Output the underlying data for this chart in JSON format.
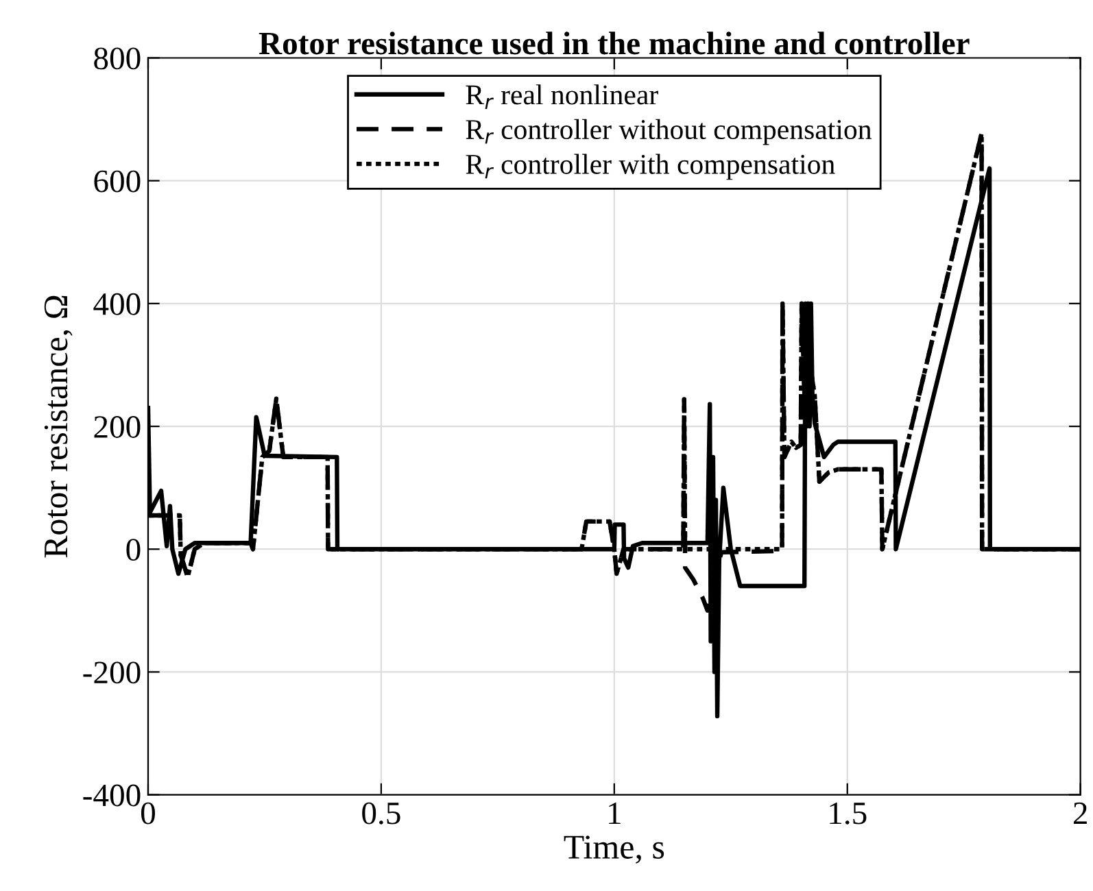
{
  "chart_data": {
    "type": "line",
    "title": "Rotor resistance used in the machine and controller",
    "xlabel": "Time, s",
    "ylabel": "Rotor resistance, Ω",
    "xlim": [
      0,
      2
    ],
    "xticks": [
      0,
      0.5,
      1,
      1.5,
      2
    ],
    "ylim": [
      -400,
      800
    ],
    "yticks": [
      -400,
      -200,
      0,
      200,
      400,
      600,
      800
    ],
    "grid": true,
    "legend": "top",
    "marker": "none",
    "series": [
      {
        "name": "R$_{r}$ real nonlinear",
        "color": "#000000",
        "line_style": "solid",
        "x": [
          0,
          0.004,
          0.028,
          0.04,
          0.047,
          0.052,
          0.065,
          0.08,
          0.1,
          0.22,
          0.232,
          0.25,
          0.405,
          0.406,
          1.0,
          1.001,
          1.02,
          1.021,
          1.03,
          1.04,
          1.06,
          1.2,
          1.205,
          1.207,
          1.212,
          1.215,
          1.218,
          1.221,
          1.225,
          1.234,
          1.25,
          1.27,
          1.408,
          1.41,
          1.413,
          1.416,
          1.419,
          1.422,
          1.425,
          1.43,
          1.45,
          1.47,
          1.48,
          1.603,
          1.604,
          1.805,
          1.806,
          2.0
        ],
        "values": [
          230,
          60,
          95,
          5,
          70,
          0,
          -40,
          0,
          10,
          10,
          215,
          152,
          150,
          0,
          0,
          40,
          40,
          -15,
          -30,
          5,
          10,
          10,
          236,
          -150,
          150,
          -200,
          80,
          -272,
          -20,
          100,
          0,
          -60,
          -60,
          400,
          200,
          400,
          200,
          400,
          250,
          205,
          150,
          170,
          175,
          175,
          0,
          620,
          0,
          0
        ]
      },
      {
        "name": "R$_{r}$ controller without compensation",
        "color": "#000000",
        "line_style": "dashed",
        "x": [
          0,
          0.068,
          0.07,
          0.085,
          0.1,
          0.12,
          0.22,
          0.225,
          0.245,
          0.26,
          0.275,
          0.29,
          0.385,
          0.386,
          0.93,
          0.94,
          0.99,
          1.0,
          1.005,
          1.02,
          1.148,
          1.15,
          1.152,
          1.17,
          1.19,
          1.2,
          1.21,
          1.23,
          1.36,
          1.361,
          1.365,
          1.38,
          1.39,
          1.4,
          1.402,
          1.41,
          1.415,
          1.42,
          1.43,
          1.44,
          1.46,
          1.48,
          1.573,
          1.575,
          1.788,
          1.789,
          2.0
        ],
        "values": [
          55,
          55,
          -10,
          -45,
          0,
          10,
          10,
          0,
          150,
          160,
          245,
          150,
          150,
          0,
          0,
          45,
          45,
          0,
          -40,
          0,
          0,
          244,
          -30,
          -50,
          -80,
          -100,
          -60,
          -5,
          -3,
          400,
          150,
          175,
          165,
          170,
          400,
          200,
          400,
          300,
          250,
          110,
          125,
          130,
          130,
          0,
          677,
          0,
          0
        ]
      },
      {
        "name": "R$_{r}$ controller with compensation",
        "color": "#000000",
        "line_style": "dotted",
        "x": [
          0,
          0.068,
          0.07,
          0.085,
          0.1,
          0.12,
          0.22,
          0.225,
          0.245,
          0.26,
          0.275,
          0.29,
          0.385,
          0.386,
          0.93,
          0.94,
          0.99,
          1.0,
          1.005,
          1.02,
          1.148,
          1.15,
          1.152,
          1.36,
          1.361,
          1.365,
          1.38,
          1.39,
          1.4,
          1.402,
          1.41,
          1.415,
          1.42,
          1.43,
          1.44,
          1.46,
          1.48,
          1.573,
          1.575,
          1.788,
          1.789,
          2.0
        ],
        "values": [
          55,
          55,
          -10,
          -45,
          0,
          10,
          10,
          0,
          150,
          160,
          245,
          150,
          150,
          0,
          0,
          45,
          45,
          0,
          -40,
          0,
          0,
          244,
          0,
          0,
          400,
          150,
          175,
          165,
          170,
          400,
          200,
          400,
          300,
          250,
          110,
          125,
          130,
          130,
          0,
          677,
          0,
          0
        ]
      }
    ]
  }
}
